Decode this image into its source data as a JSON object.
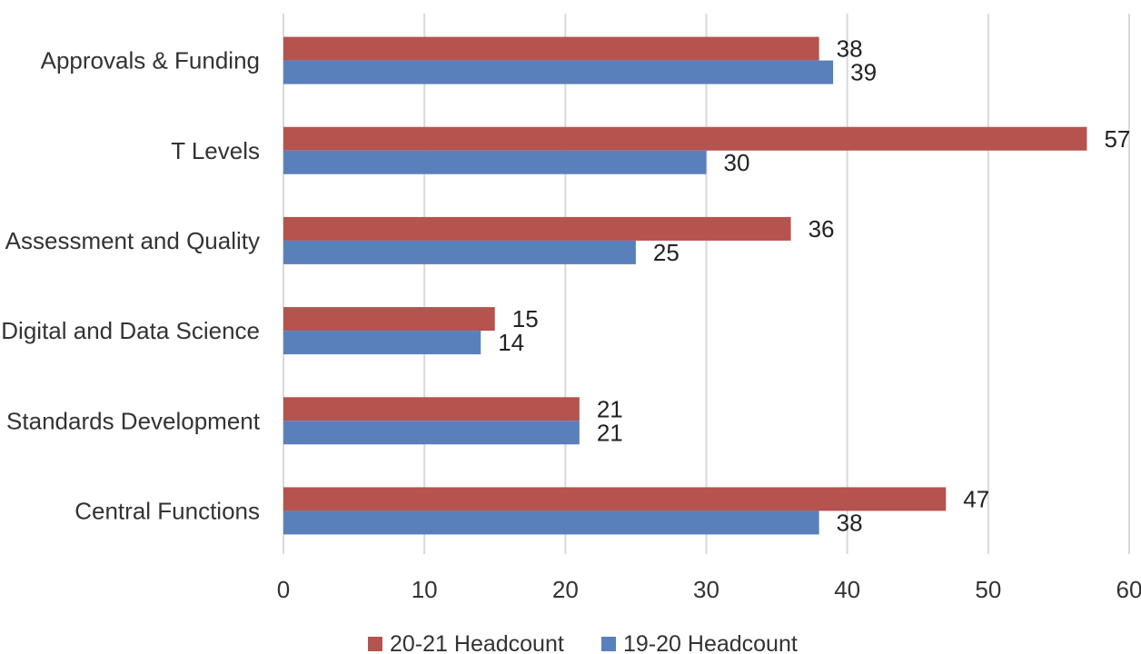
{
  "chart_data": {
    "type": "bar",
    "orientation": "horizontal",
    "categories": [
      "Approvals & Funding",
      "T Levels",
      "Assessment and Quality",
      "Digital and Data Science",
      "Standards Development",
      "Central Functions"
    ],
    "series": [
      {
        "name": "20-21 Headcount",
        "color": "#b5534f",
        "values": [
          38,
          57,
          36,
          15,
          21,
          47
        ]
      },
      {
        "name": "19-20 Headcount",
        "color": "#5a80bc",
        "values": [
          39,
          30,
          25,
          14,
          21,
          38
        ]
      }
    ],
    "xlim": [
      0,
      60
    ],
    "xticks": [
      0,
      10,
      20,
      30,
      40,
      50,
      60
    ],
    "grid": true,
    "data_labels": true,
    "legend_position": "bottom"
  }
}
